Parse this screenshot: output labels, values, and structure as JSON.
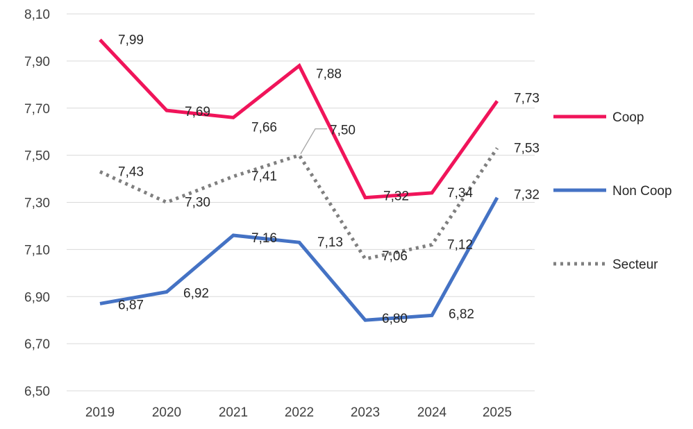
{
  "chart_data": {
    "type": "line",
    "title": "",
    "xlabel": "",
    "ylabel": "",
    "ylim": [
      6.5,
      8.1
    ],
    "ytick_step": 0.2,
    "grid": "horizontal",
    "legend_position": "right",
    "categories": [
      "2019",
      "2020",
      "2021",
      "2022",
      "2023",
      "2024",
      "2025"
    ],
    "series": [
      {
        "name": "Coop",
        "color": "#F0145A",
        "style": "solid",
        "values": [
          7.99,
          7.69,
          7.66,
          7.88,
          7.32,
          7.34,
          7.73
        ],
        "labels": [
          "7,99",
          "7,69",
          "7,66",
          "7,88",
          "7,32",
          "7,34",
          "7,73"
        ]
      },
      {
        "name": "Non Coop",
        "color": "#4472C4",
        "style": "solid",
        "values": [
          6.87,
          6.92,
          7.16,
          7.13,
          6.8,
          6.82,
          7.32
        ],
        "labels": [
          "6,87",
          "6,92",
          "7,16",
          "7,13",
          "6,80",
          "6,82",
          "7,32"
        ]
      },
      {
        "name": "Secteur",
        "color": "#7F7F7F",
        "style": "dotted",
        "values": [
          7.43,
          7.3,
          7.41,
          7.5,
          7.06,
          7.12,
          7.53
        ],
        "labels": [
          "7,43",
          "7,30",
          "7,41",
          "7,50",
          "7,06",
          "7,12",
          "7,53"
        ]
      }
    ],
    "yticks": [
      "6,50",
      "6,70",
      "6,90",
      "7,10",
      "7,30",
      "7,50",
      "7,70",
      "7,90",
      "8,10"
    ]
  }
}
